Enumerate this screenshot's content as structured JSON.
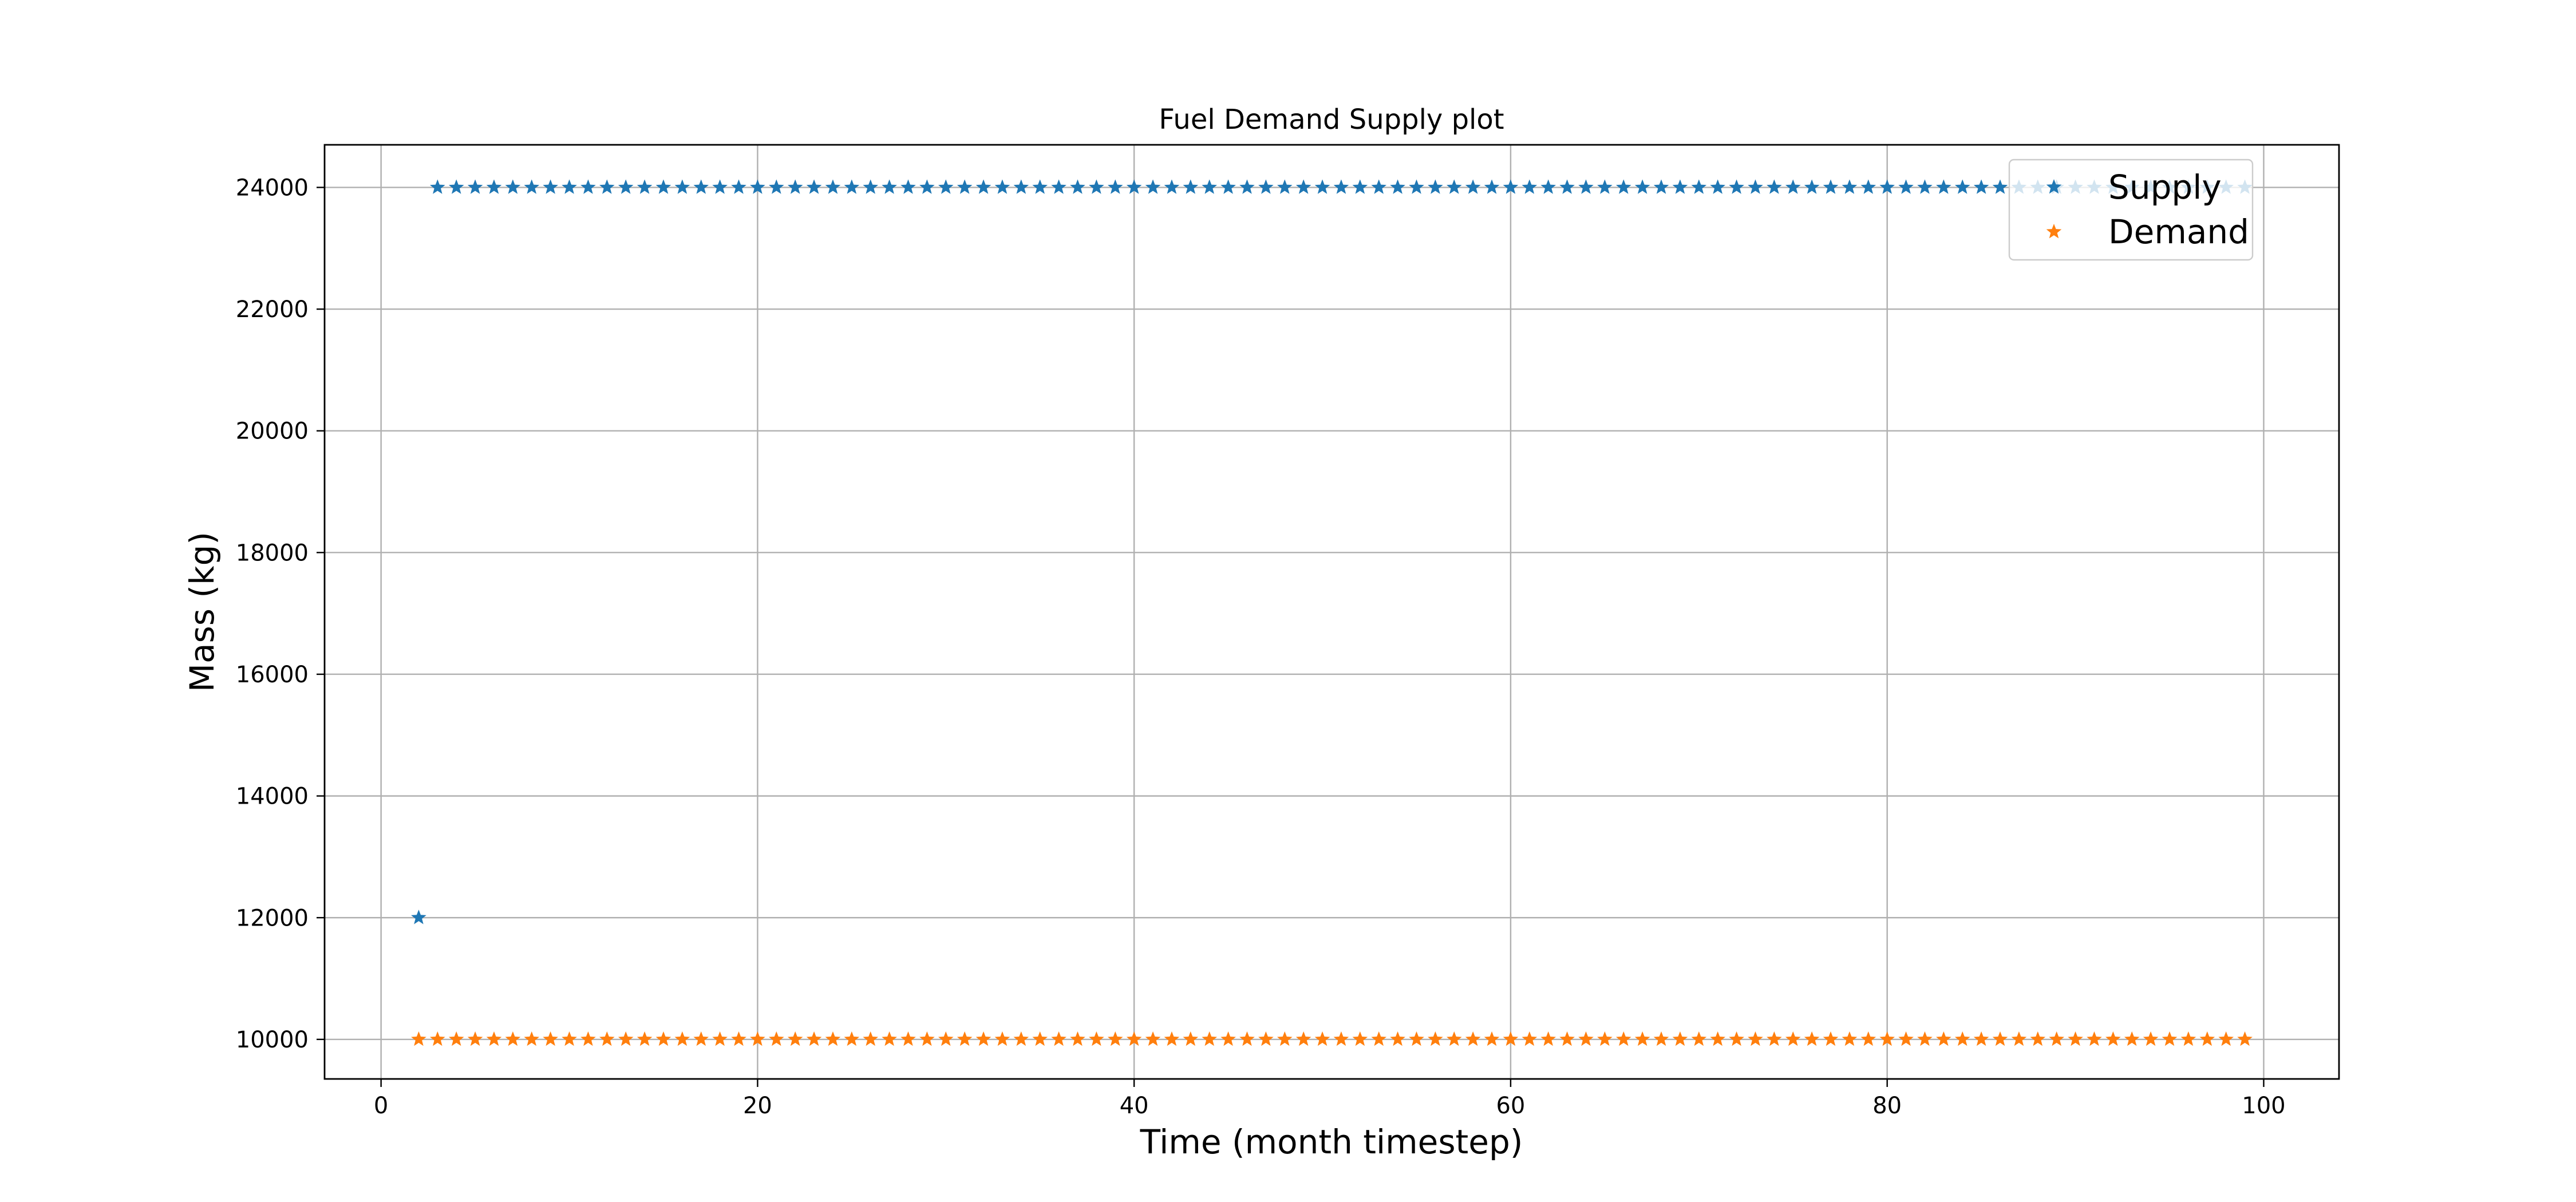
{
  "chart_data": {
    "type": "scatter",
    "title": "Fuel Demand Supply plot",
    "xlabel": "Time (month timestep)",
    "ylabel": "Mass (kg)",
    "xlim": [
      -3,
      104
    ],
    "ylim": [
      9350,
      24700
    ],
    "x_ticks": [
      0,
      20,
      40,
      60,
      80,
      100
    ],
    "y_ticks": [
      10000,
      12000,
      14000,
      16000,
      18000,
      20000,
      22000,
      24000
    ],
    "grid": true,
    "marker": "star",
    "legend_position": "top-right",
    "series": [
      {
        "name": "Supply",
        "color": "#1f77b4",
        "points": [
          [
            2,
            12000
          ],
          [
            3,
            24000
          ],
          [
            4,
            24000
          ],
          [
            5,
            24000
          ],
          [
            6,
            24000
          ],
          [
            7,
            24000
          ],
          [
            8,
            24000
          ],
          [
            9,
            24000
          ],
          [
            10,
            24000
          ],
          [
            11,
            24000
          ],
          [
            12,
            24000
          ],
          [
            13,
            24000
          ],
          [
            14,
            24000
          ],
          [
            15,
            24000
          ],
          [
            16,
            24000
          ],
          [
            17,
            24000
          ],
          [
            18,
            24000
          ],
          [
            19,
            24000
          ],
          [
            20,
            24000
          ],
          [
            21,
            24000
          ],
          [
            22,
            24000
          ],
          [
            23,
            24000
          ],
          [
            24,
            24000
          ],
          [
            25,
            24000
          ],
          [
            26,
            24000
          ],
          [
            27,
            24000
          ],
          [
            28,
            24000
          ],
          [
            29,
            24000
          ],
          [
            30,
            24000
          ],
          [
            31,
            24000
          ],
          [
            32,
            24000
          ],
          [
            33,
            24000
          ],
          [
            34,
            24000
          ],
          [
            35,
            24000
          ],
          [
            36,
            24000
          ],
          [
            37,
            24000
          ],
          [
            38,
            24000
          ],
          [
            39,
            24000
          ],
          [
            40,
            24000
          ],
          [
            41,
            24000
          ],
          [
            42,
            24000
          ],
          [
            43,
            24000
          ],
          [
            44,
            24000
          ],
          [
            45,
            24000
          ],
          [
            46,
            24000
          ],
          [
            47,
            24000
          ],
          [
            48,
            24000
          ],
          [
            49,
            24000
          ],
          [
            50,
            24000
          ],
          [
            51,
            24000
          ],
          [
            52,
            24000
          ],
          [
            53,
            24000
          ],
          [
            54,
            24000
          ],
          [
            55,
            24000
          ],
          [
            56,
            24000
          ],
          [
            57,
            24000
          ],
          [
            58,
            24000
          ],
          [
            59,
            24000
          ],
          [
            60,
            24000
          ],
          [
            61,
            24000
          ],
          [
            62,
            24000
          ],
          [
            63,
            24000
          ],
          [
            64,
            24000
          ],
          [
            65,
            24000
          ],
          [
            66,
            24000
          ],
          [
            67,
            24000
          ],
          [
            68,
            24000
          ],
          [
            69,
            24000
          ],
          [
            70,
            24000
          ],
          [
            71,
            24000
          ],
          [
            72,
            24000
          ],
          [
            73,
            24000
          ],
          [
            74,
            24000
          ],
          [
            75,
            24000
          ],
          [
            76,
            24000
          ],
          [
            77,
            24000
          ],
          [
            78,
            24000
          ],
          [
            79,
            24000
          ],
          [
            80,
            24000
          ],
          [
            81,
            24000
          ],
          [
            82,
            24000
          ],
          [
            83,
            24000
          ],
          [
            84,
            24000
          ],
          [
            85,
            24000
          ],
          [
            86,
            24000
          ],
          [
            87,
            24000
          ],
          [
            88,
            24000
          ],
          [
            89,
            24000
          ],
          [
            90,
            24000
          ],
          [
            91,
            24000
          ],
          [
            92,
            24000
          ],
          [
            93,
            24000
          ],
          [
            94,
            24000
          ],
          [
            95,
            24000
          ],
          [
            96,
            24000
          ],
          [
            97,
            24000
          ],
          [
            98,
            24000
          ],
          [
            99,
            24000
          ]
        ]
      },
      {
        "name": "Demand",
        "color": "#ff7f0e",
        "points": [
          [
            2,
            10000
          ],
          [
            3,
            10000
          ],
          [
            4,
            10000
          ],
          [
            5,
            10000
          ],
          [
            6,
            10000
          ],
          [
            7,
            10000
          ],
          [
            8,
            10000
          ],
          [
            9,
            10000
          ],
          [
            10,
            10000
          ],
          [
            11,
            10000
          ],
          [
            12,
            10000
          ],
          [
            13,
            10000
          ],
          [
            14,
            10000
          ],
          [
            15,
            10000
          ],
          [
            16,
            10000
          ],
          [
            17,
            10000
          ],
          [
            18,
            10000
          ],
          [
            19,
            10000
          ],
          [
            20,
            10000
          ],
          [
            21,
            10000
          ],
          [
            22,
            10000
          ],
          [
            23,
            10000
          ],
          [
            24,
            10000
          ],
          [
            25,
            10000
          ],
          [
            26,
            10000
          ],
          [
            27,
            10000
          ],
          [
            28,
            10000
          ],
          [
            29,
            10000
          ],
          [
            30,
            10000
          ],
          [
            31,
            10000
          ],
          [
            32,
            10000
          ],
          [
            33,
            10000
          ],
          [
            34,
            10000
          ],
          [
            35,
            10000
          ],
          [
            36,
            10000
          ],
          [
            37,
            10000
          ],
          [
            38,
            10000
          ],
          [
            39,
            10000
          ],
          [
            40,
            10000
          ],
          [
            41,
            10000
          ],
          [
            42,
            10000
          ],
          [
            43,
            10000
          ],
          [
            44,
            10000
          ],
          [
            45,
            10000
          ],
          [
            46,
            10000
          ],
          [
            47,
            10000
          ],
          [
            48,
            10000
          ],
          [
            49,
            10000
          ],
          [
            50,
            10000
          ],
          [
            51,
            10000
          ],
          [
            52,
            10000
          ],
          [
            53,
            10000
          ],
          [
            54,
            10000
          ],
          [
            55,
            10000
          ],
          [
            56,
            10000
          ],
          [
            57,
            10000
          ],
          [
            58,
            10000
          ],
          [
            59,
            10000
          ],
          [
            60,
            10000
          ],
          [
            61,
            10000
          ],
          [
            62,
            10000
          ],
          [
            63,
            10000
          ],
          [
            64,
            10000
          ],
          [
            65,
            10000
          ],
          [
            66,
            10000
          ],
          [
            67,
            10000
          ],
          [
            68,
            10000
          ],
          [
            69,
            10000
          ],
          [
            70,
            10000
          ],
          [
            71,
            10000
          ],
          [
            72,
            10000
          ],
          [
            73,
            10000
          ],
          [
            74,
            10000
          ],
          [
            75,
            10000
          ],
          [
            76,
            10000
          ],
          [
            77,
            10000
          ],
          [
            78,
            10000
          ],
          [
            79,
            10000
          ],
          [
            80,
            10000
          ],
          [
            81,
            10000
          ],
          [
            82,
            10000
          ],
          [
            83,
            10000
          ],
          [
            84,
            10000
          ],
          [
            85,
            10000
          ],
          [
            86,
            10000
          ],
          [
            87,
            10000
          ],
          [
            88,
            10000
          ],
          [
            89,
            10000
          ],
          [
            90,
            10000
          ],
          [
            91,
            10000
          ],
          [
            92,
            10000
          ],
          [
            93,
            10000
          ],
          [
            94,
            10000
          ],
          [
            95,
            10000
          ],
          [
            96,
            10000
          ],
          [
            97,
            10000
          ],
          [
            98,
            10000
          ],
          [
            99,
            10000
          ]
        ]
      }
    ]
  }
}
